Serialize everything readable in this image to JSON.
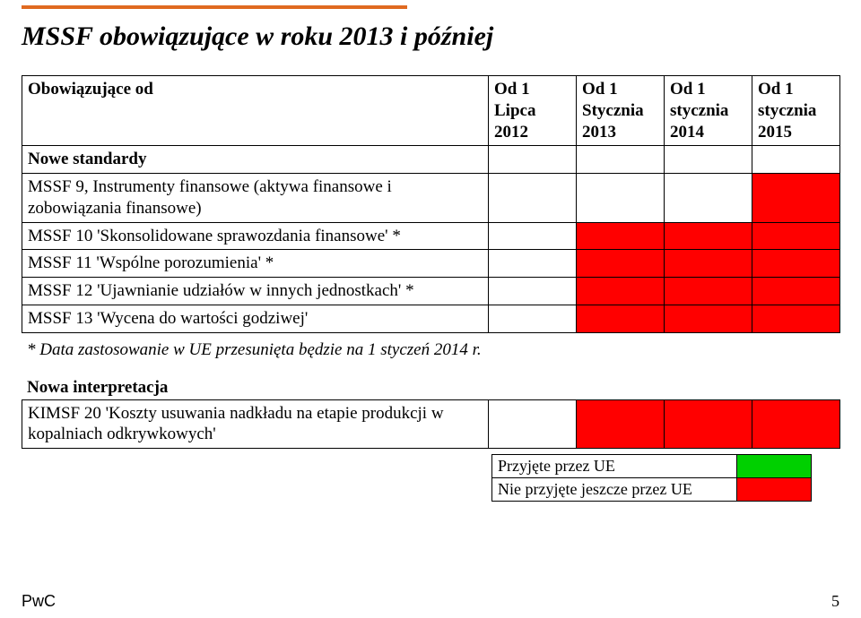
{
  "colors": {
    "accent": "#e06a20",
    "red": "#ff0000",
    "green": "#00d000",
    "border": "#000000",
    "white": "#ffffff"
  },
  "title": "MSSF obowiązujące w roku 2013 i później",
  "table": {
    "headers": {
      "label": "Obowiązujące od",
      "c1": "Od 1 Lipca 2012",
      "c2": "Od 1 Stycznia 2013",
      "c3": "Od 1 stycznia 2014",
      "c4": "Od 1 stycznia 2015"
    },
    "section": "Nowe standardy",
    "rows": [
      {
        "label": "MSSF 9, Instrumenty finansowe (aktywa finansowe i zobowiązania finansowe)",
        "cells": [
          null,
          null,
          null,
          "red"
        ]
      },
      {
        "label": "MSSF 10 'Skonsolidowane sprawozdania finansowe' *",
        "cells": [
          null,
          "red",
          "red",
          "red"
        ]
      },
      {
        "label": "MSSF 11 'Wspólne porozumienia' *",
        "cells": [
          null,
          "red",
          "red",
          "red"
        ]
      },
      {
        "label": "MSSF 12 'Ujawnianie udziałów w innych jednostkach' *",
        "cells": [
          null,
          "red",
          "red",
          "red"
        ]
      },
      {
        "label": "MSSF 13 'Wycena do wartości godziwej'",
        "cells": [
          null,
          "red",
          "red",
          "red"
        ]
      }
    ]
  },
  "footnote": "* Data zastosowanie w UE przesunięta będzie na 1 styczeń 2014 r.",
  "interp": {
    "heading": "Nowa interpretacja",
    "row_label": "KIMSF 20 'Koszty usuwania nadkładu na etapie produkcji w kopalniach odkrywkowych'",
    "cells": [
      null,
      "red",
      "red",
      "red"
    ]
  },
  "legend": {
    "accepted": "Przyjęte przez UE",
    "not_accepted": "Nie przyjęte jeszcze przez UE"
  },
  "footer": {
    "brand": "PwC",
    "page": "5"
  }
}
